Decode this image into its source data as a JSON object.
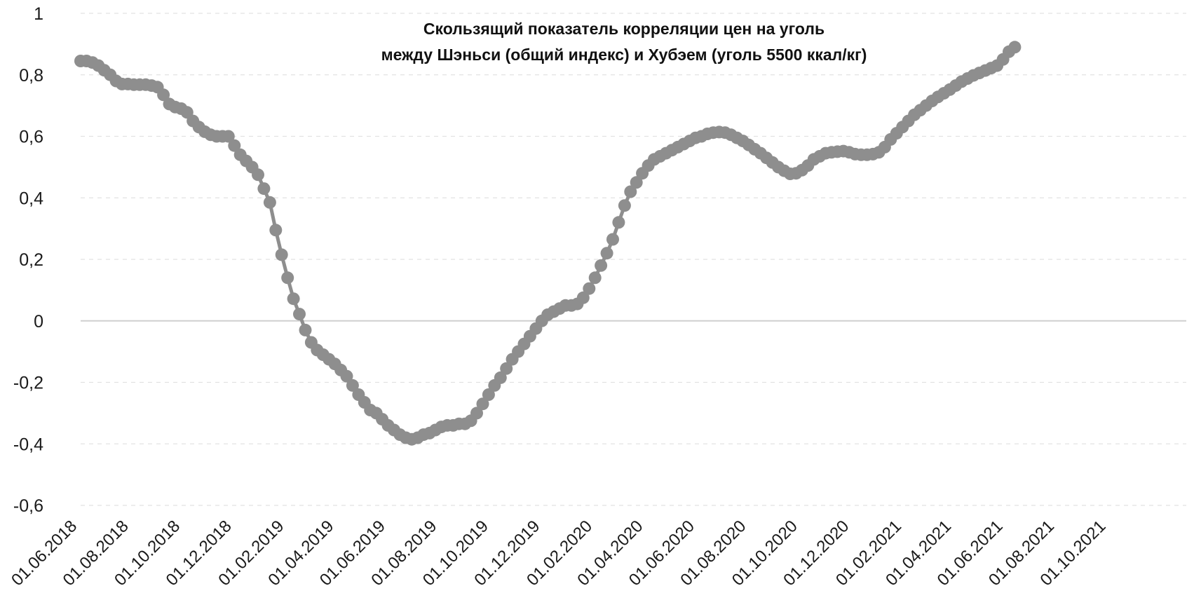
{
  "chart_data": {
    "type": "line",
    "title_lines": [
      "Скользящий показатель корреляции цен на уголь",
      "между Шэньси (общий индекс) и Хубэем (уголь 5500 ккал/кг)"
    ],
    "xlabel": "",
    "ylabel": "",
    "ylim": [
      -0.6,
      1
    ],
    "y_ticks": [
      "1",
      "0,8",
      "0,6",
      "0,4",
      "0,2",
      "0",
      "-0,2",
      "-0,4",
      "-0,6"
    ],
    "x_tick_labels": [
      "01.06.2018",
      "01.08.2018",
      "01.10.2018",
      "01.12.2018",
      "01.02.2019",
      "01.04.2019",
      "01.06.2019",
      "01.08.2019",
      "01.10.2019",
      "01.12.2019",
      "01.02.2020",
      "01.04.2020",
      "01.06.2020",
      "01.08.2020",
      "01.10.2020",
      "01.12.2020",
      "01.02.2021",
      "01.04.2021",
      "01.06.2021",
      "01.08.2021",
      "01.10.2021"
    ],
    "grid": "horizontal dashed",
    "legend": "none",
    "series_color": "#8e8e8e",
    "points": [
      [
        "01.06.2018",
        0.845
      ],
      [
        "08.06.2018",
        0.845
      ],
      [
        "15.06.2018",
        0.84
      ],
      [
        "22.06.2018",
        0.83
      ],
      [
        "29.06.2018",
        0.815
      ],
      [
        "06.07.2018",
        0.8
      ],
      [
        "13.07.2018",
        0.78
      ],
      [
        "20.07.2018",
        0.77
      ],
      [
        "27.07.2018",
        0.77
      ],
      [
        "03.08.2018",
        0.768
      ],
      [
        "10.08.2018",
        0.768
      ],
      [
        "17.08.2018",
        0.768
      ],
      [
        "24.08.2018",
        0.765
      ],
      [
        "31.08.2018",
        0.76
      ],
      [
        "07.09.2018",
        0.735
      ],
      [
        "14.09.2018",
        0.705
      ],
      [
        "21.09.2018",
        0.695
      ],
      [
        "28.09.2018",
        0.69
      ],
      [
        "05.10.2018",
        0.678
      ],
      [
        "12.10.2018",
        0.65
      ],
      [
        "19.10.2018",
        0.63
      ],
      [
        "26.10.2018",
        0.615
      ],
      [
        "02.11.2018",
        0.605
      ],
      [
        "09.11.2018",
        0.6
      ],
      [
        "16.11.2018",
        0.6
      ],
      [
        "23.11.2018",
        0.6
      ],
      [
        "30.11.2018",
        0.57
      ],
      [
        "07.12.2018",
        0.54
      ],
      [
        "14.12.2018",
        0.52
      ],
      [
        "21.12.2018",
        0.5
      ],
      [
        "28.12.2018",
        0.475
      ],
      [
        "04.01.2019",
        0.43
      ],
      [
        "11.01.2019",
        0.385
      ],
      [
        "18.01.2019",
        0.295
      ],
      [
        "25.01.2019",
        0.215
      ],
      [
        "01.02.2019",
        0.14
      ],
      [
        "08.02.2019",
        0.072
      ],
      [
        "15.02.2019",
        0.022
      ],
      [
        "22.02.2019",
        -0.03
      ],
      [
        "01.03.2019",
        -0.07
      ],
      [
        "08.03.2019",
        -0.095
      ],
      [
        "15.03.2019",
        -0.11
      ],
      [
        "22.03.2019",
        -0.125
      ],
      [
        "29.03.2019",
        -0.14
      ],
      [
        "05.04.2019",
        -0.16
      ],
      [
        "12.04.2019",
        -0.18
      ],
      [
        "19.04.2019",
        -0.21
      ],
      [
        "26.04.2019",
        -0.24
      ],
      [
        "03.05.2019",
        -0.265
      ],
      [
        "10.05.2019",
        -0.29
      ],
      [
        "17.05.2019",
        -0.3
      ],
      [
        "24.05.2019",
        -0.32
      ],
      [
        "31.05.2019",
        -0.34
      ],
      [
        "07.06.2019",
        -0.355
      ],
      [
        "14.06.2019",
        -0.37
      ],
      [
        "21.06.2019",
        -0.38
      ],
      [
        "28.06.2019",
        -0.385
      ],
      [
        "05.07.2019",
        -0.38
      ],
      [
        "12.07.2019",
        -0.37
      ],
      [
        "19.07.2019",
        -0.365
      ],
      [
        "26.07.2019",
        -0.355
      ],
      [
        "02.08.2019",
        -0.345
      ],
      [
        "09.08.2019",
        -0.34
      ],
      [
        "16.08.2019",
        -0.34
      ],
      [
        "23.08.2019",
        -0.335
      ],
      [
        "30.08.2019",
        -0.335
      ],
      [
        "06.09.2019",
        -0.325
      ],
      [
        "13.09.2019",
        -0.3
      ],
      [
        "20.09.2019",
        -0.27
      ],
      [
        "27.09.2019",
        -0.24
      ],
      [
        "04.10.2019",
        -0.21
      ],
      [
        "11.10.2019",
        -0.185
      ],
      [
        "18.10.2019",
        -0.155
      ],
      [
        "25.10.2019",
        -0.125
      ],
      [
        "01.11.2019",
        -0.1
      ],
      [
        "08.11.2019",
        -0.075
      ],
      [
        "15.11.2019",
        -0.05
      ],
      [
        "22.11.2019",
        -0.025
      ],
      [
        "29.11.2019",
        0.0
      ],
      [
        "06.12.2019",
        0.02
      ],
      [
        "13.12.2019",
        0.03
      ],
      [
        "20.12.2019",
        0.04
      ],
      [
        "27.12.2019",
        0.05
      ],
      [
        "03.01.2020",
        0.05
      ],
      [
        "10.01.2020",
        0.055
      ],
      [
        "17.01.2020",
        0.075
      ],
      [
        "24.01.2020",
        0.105
      ],
      [
        "31.01.2020",
        0.14
      ],
      [
        "07.02.2020",
        0.18
      ],
      [
        "14.02.2020",
        0.22
      ],
      [
        "21.02.2020",
        0.265
      ],
      [
        "28.02.2020",
        0.32
      ],
      [
        "06.03.2020",
        0.375
      ],
      [
        "13.03.2020",
        0.42
      ],
      [
        "20.03.2020",
        0.45
      ],
      [
        "27.03.2020",
        0.48
      ],
      [
        "03.04.2020",
        0.505
      ],
      [
        "10.04.2020",
        0.525
      ],
      [
        "17.04.2020",
        0.535
      ],
      [
        "24.04.2020",
        0.545
      ],
      [
        "01.05.2020",
        0.555
      ],
      [
        "08.05.2020",
        0.565
      ],
      [
        "15.05.2020",
        0.575
      ],
      [
        "22.05.2020",
        0.585
      ],
      [
        "29.05.2020",
        0.595
      ],
      [
        "05.06.2020",
        0.6
      ],
      [
        "12.06.2020",
        0.608
      ],
      [
        "19.06.2020",
        0.612
      ],
      [
        "26.06.2020",
        0.614
      ],
      [
        "03.07.2020",
        0.612
      ],
      [
        "10.07.2020",
        0.605
      ],
      [
        "17.07.2020",
        0.595
      ],
      [
        "24.07.2020",
        0.585
      ],
      [
        "31.07.2020",
        0.572
      ],
      [
        "07.08.2020",
        0.558
      ],
      [
        "14.08.2020",
        0.545
      ],
      [
        "21.08.2020",
        0.53
      ],
      [
        "28.08.2020",
        0.515
      ],
      [
        "04.09.2020",
        0.5
      ],
      [
        "11.09.2020",
        0.488
      ],
      [
        "18.09.2020",
        0.478
      ],
      [
        "25.09.2020",
        0.48
      ],
      [
        "02.10.2020",
        0.49
      ],
      [
        "09.10.2020",
        0.505
      ],
      [
        "16.10.2020",
        0.525
      ],
      [
        "23.10.2020",
        0.535
      ],
      [
        "30.10.2020",
        0.545
      ],
      [
        "06.11.2020",
        0.548
      ],
      [
        "13.11.2020",
        0.55
      ],
      [
        "20.11.2020",
        0.552
      ],
      [
        "27.11.2020",
        0.548
      ],
      [
        "04.12.2020",
        0.542
      ],
      [
        "11.12.2020",
        0.54
      ],
      [
        "18.12.2020",
        0.54
      ],
      [
        "25.12.2020",
        0.542
      ],
      [
        "01.01.2021",
        0.548
      ],
      [
        "08.01.2021",
        0.565
      ],
      [
        "15.01.2021",
        0.59
      ],
      [
        "22.01.2021",
        0.61
      ],
      [
        "29.01.2021",
        0.63
      ],
      [
        "05.02.2021",
        0.65
      ],
      [
        "12.02.2021",
        0.67
      ],
      [
        "19.02.2021",
        0.685
      ],
      [
        "26.02.2021",
        0.7
      ],
      [
        "05.03.2021",
        0.715
      ],
      [
        "12.03.2021",
        0.728
      ],
      [
        "19.03.2021",
        0.74
      ],
      [
        "26.03.2021",
        0.752
      ],
      [
        "02.04.2021",
        0.765
      ],
      [
        "09.04.2021",
        0.778
      ],
      [
        "16.04.2021",
        0.788
      ],
      [
        "23.04.2021",
        0.798
      ],
      [
        "30.04.2021",
        0.806
      ],
      [
        "07.05.2021",
        0.814
      ],
      [
        "14.05.2021",
        0.822
      ],
      [
        "21.05.2021",
        0.83
      ],
      [
        "28.05.2021",
        0.85
      ],
      [
        "04.06.2021",
        0.875
      ],
      [
        "11.06.2021",
        0.89
      ]
    ]
  }
}
